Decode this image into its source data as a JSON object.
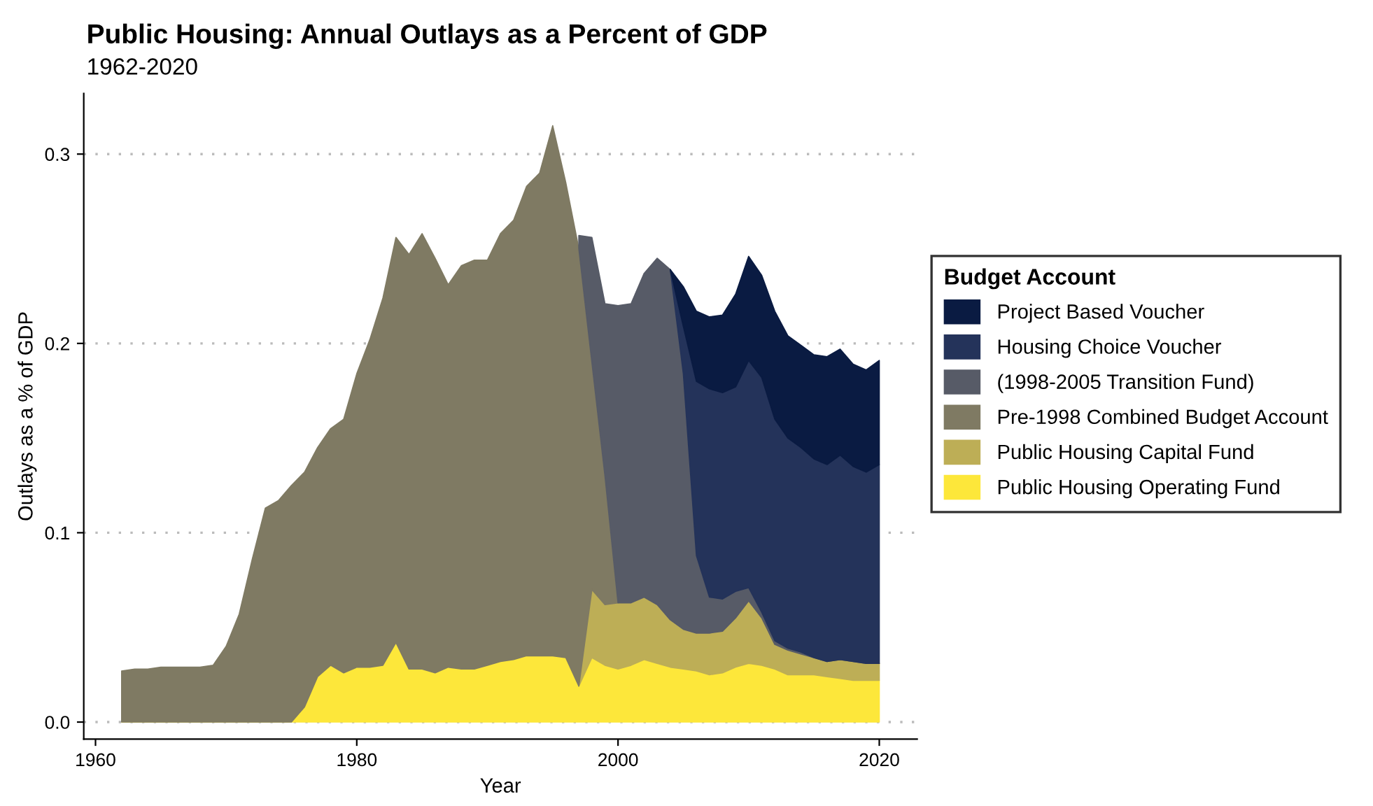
{
  "chart_data": {
    "type": "area",
    "stacked": true,
    "title": "Public Housing: Annual Outlays as a Percent of GDP",
    "subtitle": "1962-2020",
    "xlabel": "Year",
    "ylabel": "Outlays as a % of GDP",
    "legend_title": "Budget Account",
    "legend": "right",
    "grid": "y",
    "x": [
      1962,
      1963,
      1964,
      1965,
      1966,
      1967,
      1968,
      1969,
      1970,
      1971,
      1972,
      1973,
      1974,
      1975,
      1976,
      1977,
      1978,
      1979,
      1980,
      1981,
      1982,
      1983,
      1984,
      1985,
      1986,
      1987,
      1988,
      1989,
      1990,
      1991,
      1992,
      1993,
      1994,
      1995,
      1996,
      1997,
      1998,
      1999,
      2000,
      2001,
      2002,
      2003,
      2004,
      2005,
      2006,
      2007,
      2008,
      2009,
      2010,
      2011,
      2012,
      2013,
      2014,
      2015,
      2016,
      2017,
      2018,
      2019,
      2020
    ],
    "xlim": [
      1959.1,
      2022.9
    ],
    "xticks": [
      1960,
      1980,
      2000,
      2020
    ],
    "ylim": [
      -0.009,
      0.332
    ],
    "yticks": [
      {
        "value": 0,
        "label": "0.0"
      },
      0.1,
      0.2,
      0.3
    ],
    "series": [
      {
        "name": "Public Housing Operating Fund",
        "color": "#fde73a",
        "values": [
          0,
          0,
          0,
          0,
          0,
          0,
          0,
          0,
          0,
          0,
          0,
          0,
          0,
          0,
          0.008,
          0.024,
          0.03,
          0.026,
          0.029,
          0.029,
          0.03,
          0.042,
          0.028,
          0.028,
          0.026,
          0.029,
          0.028,
          0.028,
          0.03,
          0.032,
          0.033,
          0.035,
          0.035,
          0.035,
          0.034,
          0.019,
          0.034,
          0.03,
          0.028,
          0.03,
          0.033,
          0.031,
          0.029,
          0.028,
          0.027,
          0.025,
          0.026,
          0.029,
          0.031,
          0.03,
          0.028,
          0.025,
          0.025,
          0.025,
          0.024,
          0.023,
          0.022,
          0.022,
          0.022
        ]
      },
      {
        "name": "Public Housing Capital Fund",
        "color": "#bdae56",
        "values": [
          null,
          null,
          null,
          null,
          null,
          null,
          null,
          null,
          null,
          null,
          null,
          null,
          null,
          null,
          null,
          null,
          null,
          null,
          null,
          null,
          null,
          null,
          null,
          null,
          null,
          null,
          null,
          null,
          null,
          null,
          null,
          null,
          null,
          null,
          null,
          0,
          0.036,
          0.032,
          0.035,
          0.033,
          0.033,
          0.031,
          0.025,
          0.021,
          0.02,
          0.022,
          0.022,
          0.026,
          0.033,
          0.025,
          0.013,
          0.013,
          0.011,
          0.009,
          0.008,
          0.01,
          0.01,
          0.009,
          0.009
        ]
      },
      {
        "name": "Pre-1998 Combined Budget Account",
        "color": "#7f7a63",
        "values": [
          0.027,
          0.028,
          0.028,
          0.029,
          0.029,
          0.029,
          0.029,
          0.03,
          0.04,
          0.057,
          0.086,
          0.113,
          0.117,
          0.125,
          0.124,
          0.121,
          0.125,
          0.134,
          0.155,
          0.173,
          0.194,
          0.214,
          0.219,
          0.23,
          0.219,
          0.202,
          0.213,
          0.216,
          0.214,
          0.226,
          0.232,
          0.248,
          0.255,
          0.28,
          0.251,
          0.231,
          0.12,
          0.068,
          0,
          null,
          null,
          null,
          null,
          null,
          null,
          null,
          null,
          null,
          null,
          null,
          null,
          null,
          null,
          null,
          null,
          null,
          null,
          null,
          null
        ]
      },
      {
        "name": "(1998-2005 Transition Fund)",
        "color": "#575b67",
        "values": [
          null,
          null,
          null,
          null,
          null,
          null,
          null,
          null,
          null,
          null,
          null,
          null,
          null,
          null,
          null,
          null,
          null,
          null,
          null,
          null,
          null,
          null,
          null,
          null,
          null,
          null,
          null,
          null,
          null,
          null,
          null,
          null,
          null,
          null,
          null,
          0.007,
          0.066,
          0.091,
          0.157,
          0.158,
          0.171,
          0.183,
          0.185,
          0.135,
          0.041,
          0.019,
          0.017,
          0.014,
          0.007,
          0.003,
          0.002,
          0.001,
          0.001,
          0,
          0,
          0,
          0,
          0,
          0
        ]
      },
      {
        "name": "Housing Choice Voucher",
        "color": "#24335a",
        "values": [
          null,
          null,
          null,
          null,
          null,
          null,
          null,
          null,
          null,
          null,
          null,
          null,
          null,
          null,
          null,
          null,
          null,
          null,
          null,
          null,
          null,
          null,
          null,
          null,
          null,
          null,
          null,
          null,
          null,
          null,
          null,
          null,
          null,
          null,
          null,
          null,
          null,
          null,
          null,
          null,
          null,
          null,
          0,
          0.025,
          0.092,
          0.11,
          0.109,
          0.108,
          0.12,
          0.124,
          0.117,
          0.111,
          0.108,
          0.105,
          0.104,
          0.108,
          0.103,
          0.101,
          0.105
        ]
      },
      {
        "name": "Project Based Voucher",
        "color": "#0a1b42",
        "values": [
          null,
          null,
          null,
          null,
          null,
          null,
          null,
          null,
          null,
          null,
          null,
          null,
          null,
          null,
          null,
          null,
          null,
          null,
          null,
          null,
          null,
          null,
          null,
          null,
          null,
          null,
          null,
          null,
          null,
          null,
          null,
          null,
          null,
          null,
          null,
          null,
          null,
          null,
          null,
          null,
          null,
          null,
          0,
          0.021,
          0.037,
          0.038,
          0.041,
          0.049,
          0.055,
          0.054,
          0.057,
          0.054,
          0.054,
          0.055,
          0.057,
          0.056,
          0.054,
          0.054,
          0.055
        ]
      }
    ]
  }
}
